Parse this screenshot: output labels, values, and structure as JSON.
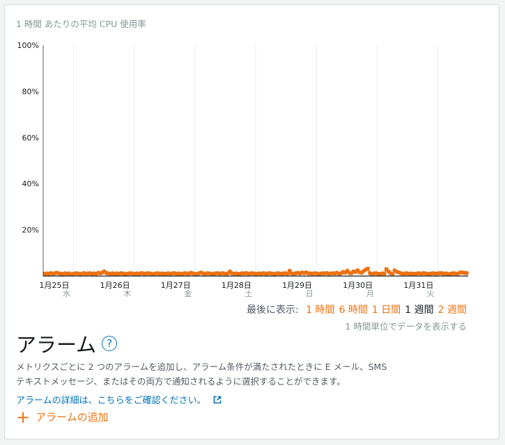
{
  "chart_data": {
    "type": "line",
    "title": "1 時間 あたりの平均 CPU 使用率",
    "y_ticks": [
      "100%",
      "80%",
      "60%",
      "40%",
      "20%"
    ],
    "x_ticks": [
      {
        "date": "1月25日",
        "day": "水"
      },
      {
        "date": "1月26日",
        "day": "木"
      },
      {
        "date": "1月27日",
        "day": "金"
      },
      {
        "date": "1月28日",
        "day": "土"
      },
      {
        "date": "1月29日",
        "day": "日"
      },
      {
        "date": "1月30日",
        "day": "月"
      },
      {
        "date": "1月31日",
        "day": "火"
      }
    ],
    "ylim": [
      0,
      100
    ],
    "grid": true,
    "series": [
      {
        "color": "#ec7211",
        "values": [
          1.0,
          1.1,
          0.9,
          1.3,
          1.0,
          1.2,
          1.4,
          1.1,
          1.0,
          0.9,
          1.2,
          1.0,
          1.1,
          0.8,
          1.0,
          1.2,
          1.1,
          1.0,
          0.9,
          1.3,
          1.0,
          1.1,
          1.2,
          1.0,
          1.1,
          0.9,
          1.4,
          1.2,
          1.5,
          2.0,
          1.3,
          1.1,
          1.0,
          1.2,
          0.9,
          1.1,
          1.0,
          1.2,
          1.1,
          0.8,
          1.0,
          1.1,
          1.2,
          1.0,
          0.9,
          1.1,
          1.0,
          1.3,
          1.1,
          1.0,
          1.2,
          1.1,
          1.0,
          0.9,
          1.1,
          1.2,
          1.0,
          1.1,
          1.0,
          0.9,
          1.2,
          1.0,
          1.1,
          1.3,
          1.0,
          1.1,
          0.9,
          1.0,
          1.2,
          1.1,
          1.0,
          1.4,
          1.1,
          1.0,
          0.9,
          1.2,
          1.5,
          1.1,
          1.0,
          1.2,
          1.1,
          1.0,
          0.9,
          1.1,
          1.3,
          1.0,
          1.2,
          1.1,
          1.0,
          1.1,
          2.0,
          1.2,
          1.0,
          1.1,
          0.9,
          1.0,
          1.2,
          1.1,
          1.3,
          1.0,
          1.1,
          1.2,
          1.0,
          0.9,
          1.1,
          1.0,
          1.2,
          1.1,
          1.0,
          1.3,
          1.1,
          1.0,
          0.9,
          1.2,
          1.1,
          1.0,
          1.1,
          1.2,
          1.0,
          2.3,
          1.1,
          1.0,
          1.2,
          1.4,
          1.1,
          1.5,
          1.3,
          1.6,
          1.2,
          1.1,
          1.0,
          1.2,
          1.1,
          0.9,
          1.0,
          1.2,
          1.1,
          1.3,
          1.0,
          1.1,
          1.2,
          1.1,
          1.4,
          1.0,
          1.2,
          1.8,
          1.5,
          2.3,
          1.4,
          1.2,
          2.0,
          1.8,
          2.5,
          1.6,
          1.4,
          2.2,
          2.8,
          3.2,
          1.2,
          1.0,
          1.1,
          1.2,
          1.0,
          0.9,
          1.1,
          1.0,
          3.0,
          2.0,
          1.2,
          0.8,
          2.4,
          1.9,
          1.6,
          1.2,
          1.0,
          1.1,
          1.2,
          1.0,
          1.1,
          0.9,
          1.0,
          1.1,
          1.2,
          1.0,
          1.3,
          1.1,
          1.0,
          0.9,
          1.1,
          1.2,
          1.0,
          1.1,
          1.3,
          1.2,
          1.0,
          1.1,
          0.8,
          1.0,
          1.1,
          1.2,
          1.0,
          1.1,
          1.6,
          1.5,
          1.4,
          1.3
        ]
      }
    ]
  },
  "range_selector": {
    "prefix": "最後に表示:",
    "options": [
      {
        "label": "1 時間",
        "active": false
      },
      {
        "label": "6 時間",
        "active": false
      },
      {
        "label": "1 日間",
        "active": false
      },
      {
        "label": "1 週間",
        "active": true
      },
      {
        "label": "2 週間",
        "active": false
      }
    ],
    "note": "1 時間単位でデータを表示する"
  },
  "alarms": {
    "heading": "アラーム",
    "help_glyph": "?",
    "description_line1": "メトリクスごとに 2 つのアラームを追加し、アラーム条件が満たされたときに E メール、SMS",
    "description_line2": "テキストメッセージ、またはその両方で通知されるように選択することができます。",
    "details_link": "アラームの詳細は、こちらをご確認ください。",
    "add_plus": "+",
    "add_label": "アラームの追加"
  },
  "colors": {
    "accent": "#ec7211",
    "link": "#0073bb"
  }
}
